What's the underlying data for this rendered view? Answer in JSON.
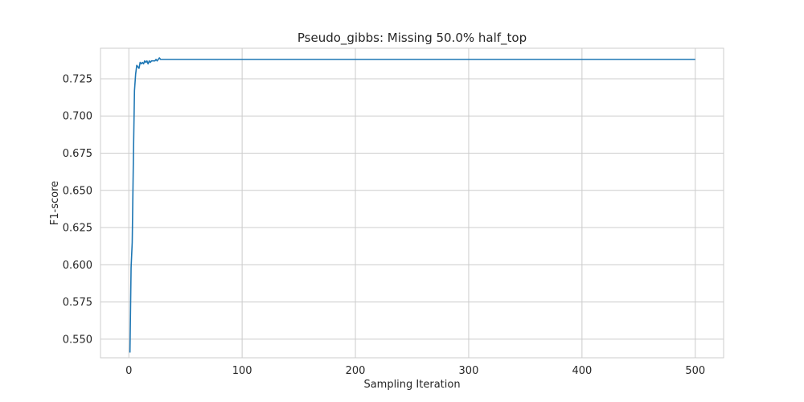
{
  "chart_data": {
    "type": "line",
    "title": "Pseudo_gibbs: Missing 50.0% half_top",
    "xlabel": "Sampling Iteration",
    "ylabel": "F1-score",
    "xlim": [
      -25,
      525
    ],
    "ylim": [
      0.5375,
      0.7455
    ],
    "xticks": [
      0,
      100,
      200,
      300,
      400,
      500
    ],
    "xtick_labels": [
      "0",
      "100",
      "200",
      "300",
      "400",
      "500"
    ],
    "yticks": [
      0.55,
      0.575,
      0.6,
      0.625,
      0.65,
      0.675,
      0.7,
      0.725
    ],
    "ytick_labels": [
      "0.550",
      "0.575",
      "0.600",
      "0.625",
      "0.650",
      "0.675",
      "0.700",
      "0.725"
    ],
    "grid": true,
    "series": [
      {
        "color": "#1f77b4",
        "x": [
          1,
          2,
          3,
          4,
          5,
          6,
          7,
          8,
          9,
          10,
          11,
          12,
          13,
          14,
          15,
          16,
          17,
          18,
          19,
          20,
          21,
          22,
          23,
          24,
          25,
          26,
          27,
          28,
          29,
          30,
          500
        ],
        "y": [
          0.541,
          0.598,
          0.615,
          0.67,
          0.717,
          0.728,
          0.734,
          0.733,
          0.732,
          0.736,
          0.735,
          0.736,
          0.735,
          0.737,
          0.736,
          0.737,
          0.735,
          0.737,
          0.736,
          0.737,
          0.737,
          0.737,
          0.737,
          0.738,
          0.737,
          0.738,
          0.739,
          0.738,
          0.738,
          0.738,
          0.738
        ]
      }
    ]
  }
}
